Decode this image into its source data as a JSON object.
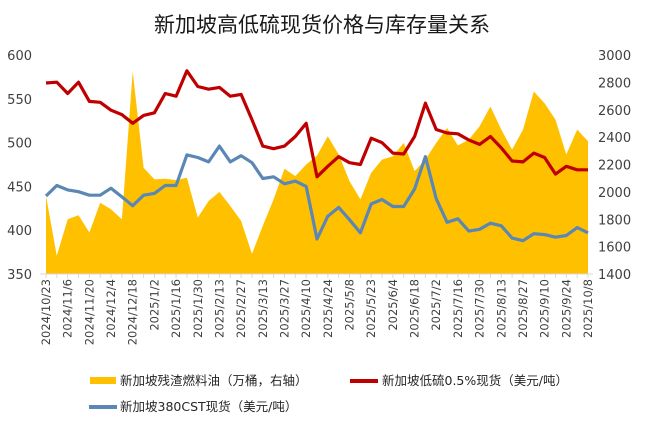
{
  "chart_data": {
    "type": "area+line",
    "title": "新加坡高低硫现货价格与库存量关系",
    "x_tick_labels": [
      "2024/10/23",
      "2024/11/6",
      "2024/11/20",
      "2024/12/4",
      "2024/12/18",
      "2025/1/2",
      "2025/1/16",
      "2025/1/30",
      "2025/2/13",
      "2025/2/27",
      "2025/3/13",
      "2025/3/27",
      "2025/4/10",
      "2025/4/24",
      "2025/5/8",
      "2025/5/23",
      "2025/6/4",
      "2025/6/18",
      "2025/7/2",
      "2025/7/16",
      "2025/7/30",
      "2025/8/13",
      "2025/8/27",
      "2025/9/10",
      "2025/9/24",
      "2025/10/8"
    ],
    "x_frequency": "weekly, labeled every other week",
    "y_left": {
      "min": 350,
      "max": 600,
      "ticks": [
        350,
        400,
        450,
        500,
        550,
        600
      ]
    },
    "y_right": {
      "min": 1400,
      "max": 3000,
      "ticks": [
        1400,
        1600,
        1800,
        2000,
        2200,
        2400,
        2600,
        2800,
        3000
      ]
    },
    "grid": false,
    "legend_position": "bottom",
    "series": [
      {
        "name": "新加坡残渣燃料油（万桶，右轴）",
        "type": "area",
        "axis": "right",
        "color": "#FFC000",
        "values": [
          1970,
          1533,
          1800,
          1829,
          1703,
          1921,
          1873,
          1800,
          2879,
          2176,
          2091,
          2096,
          2086,
          2103,
          1812,
          1933,
          2000,
          1897,
          1788,
          1546,
          1752,
          1945,
          2169,
          2115,
          2200,
          2265,
          2406,
          2273,
          2079,
          1945,
          2139,
          2236,
          2261,
          2358,
          2152,
          2236,
          2358,
          2467,
          2339,
          2382,
          2479,
          2624,
          2455,
          2309,
          2455,
          2733,
          2648,
          2527,
          2273,
          2455,
          2370
        ]
      },
      {
        "name": "新加坡低硫0.5%现货（美元/吨）",
        "type": "line",
        "axis": "left",
        "color": "#C00000",
        "values": [
          568,
          569,
          556,
          569,
          547,
          546,
          537,
          532,
          522,
          531,
          534,
          556,
          553,
          582,
          564,
          561,
          563,
          553,
          555,
          526,
          496,
          493,
          496,
          507,
          522,
          461,
          473,
          484,
          477,
          475,
          505,
          500,
          488,
          487,
          507,
          545,
          515,
          511,
          510,
          503,
          498,
          507,
          494,
          479,
          478,
          488,
          483,
          464,
          473,
          469,
          469
        ]
      },
      {
        "name": "新加坡380CST现货（美元/吨）",
        "type": "line",
        "axis": "left",
        "color": "#5B87B5",
        "values": [
          439,
          451,
          446,
          444,
          440,
          440,
          448,
          438,
          428,
          440,
          442,
          451,
          451,
          486,
          483,
          478,
          496,
          478,
          485,
          477,
          459,
          461,
          453,
          456,
          450,
          390,
          416,
          426,
          412,
          397,
          430,
          435,
          427,
          427,
          447,
          484,
          436,
          409,
          413,
          399,
          401,
          408,
          405,
          391,
          388,
          396,
          395,
          392,
          394,
          403,
          397
        ]
      }
    ]
  }
}
